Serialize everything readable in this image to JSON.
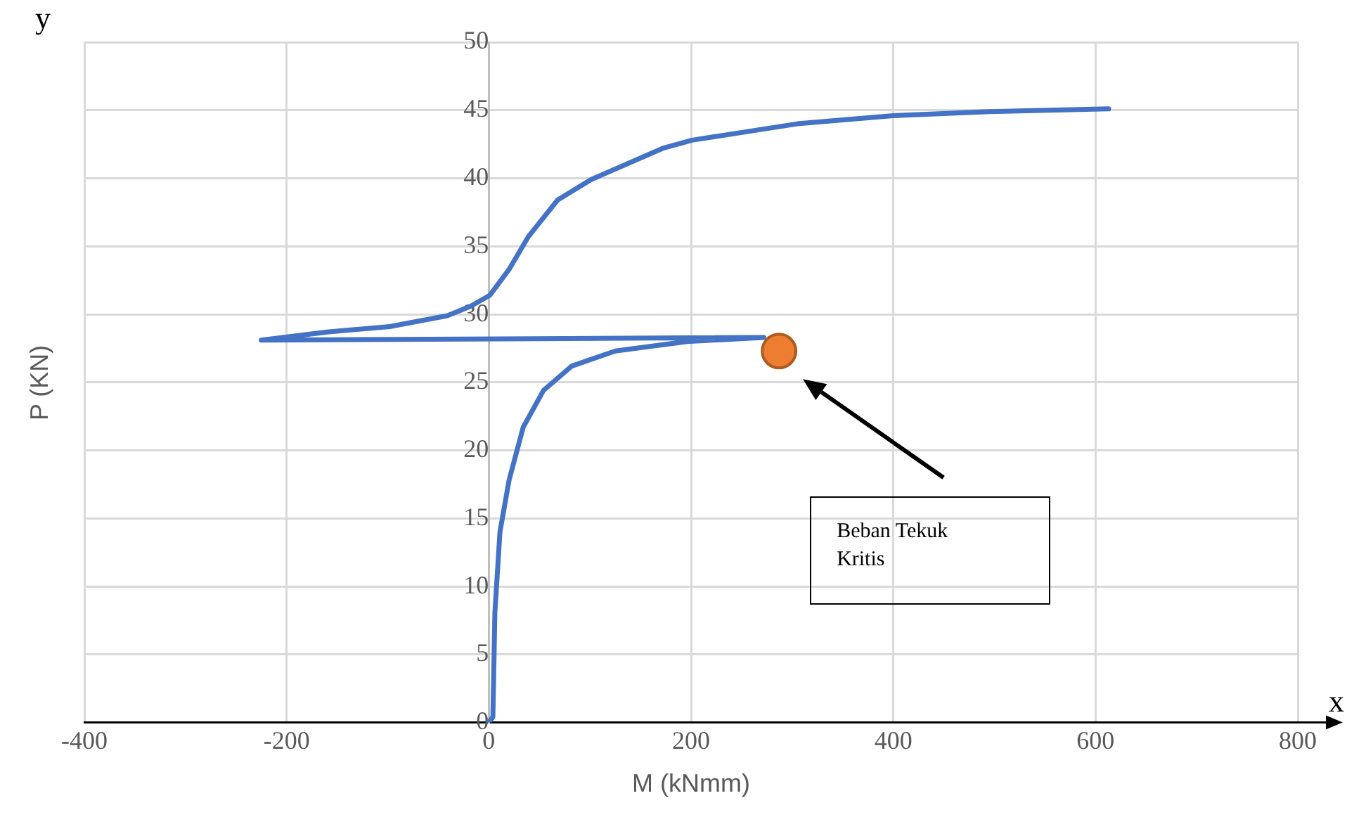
{
  "chart_data": {
    "type": "line",
    "xlabel": "M (kNmm)",
    "ylabel": "P (KN)",
    "xlim": [
      -400,
      800
    ],
    "xticks": [
      -400,
      -200,
      0,
      200,
      400,
      600,
      800
    ],
    "ylim": [
      0,
      50
    ],
    "yticks": [
      0,
      5,
      10,
      15,
      20,
      25,
      30,
      35,
      40,
      45,
      50
    ],
    "grid": true,
    "legend": false,
    "series": [
      {
        "type": "line",
        "marker": "none",
        "color": "#4472c4",
        "x": [
          0,
          4,
          6,
          11,
          20,
          34,
          54,
          82,
          125,
          196,
          272,
          -225,
          -160,
          -98,
          -41,
          -18,
          1,
          20,
          39,
          68,
          101,
          172,
          201,
          305,
          400,
          495,
          613
        ],
        "values": [
          0,
          0.4,
          8.1,
          14,
          17.8,
          21.7,
          24.4,
          26.2,
          27.3,
          28,
          28.3,
          28.1,
          28.7,
          29.1,
          29.9,
          30.6,
          31.4,
          33.3,
          35.7,
          38.4,
          39.9,
          42.2,
          42.8,
          44,
          44.6,
          44.9,
          45.1
        ]
      },
      {
        "type": "scatter",
        "marker": "circle",
        "color": "#ed7d31",
        "x": [
          287
        ],
        "values": [
          27.3
        ]
      }
    ],
    "annotations": [
      "y",
      "x",
      "Beban Tekuk Kritis"
    ]
  }
}
